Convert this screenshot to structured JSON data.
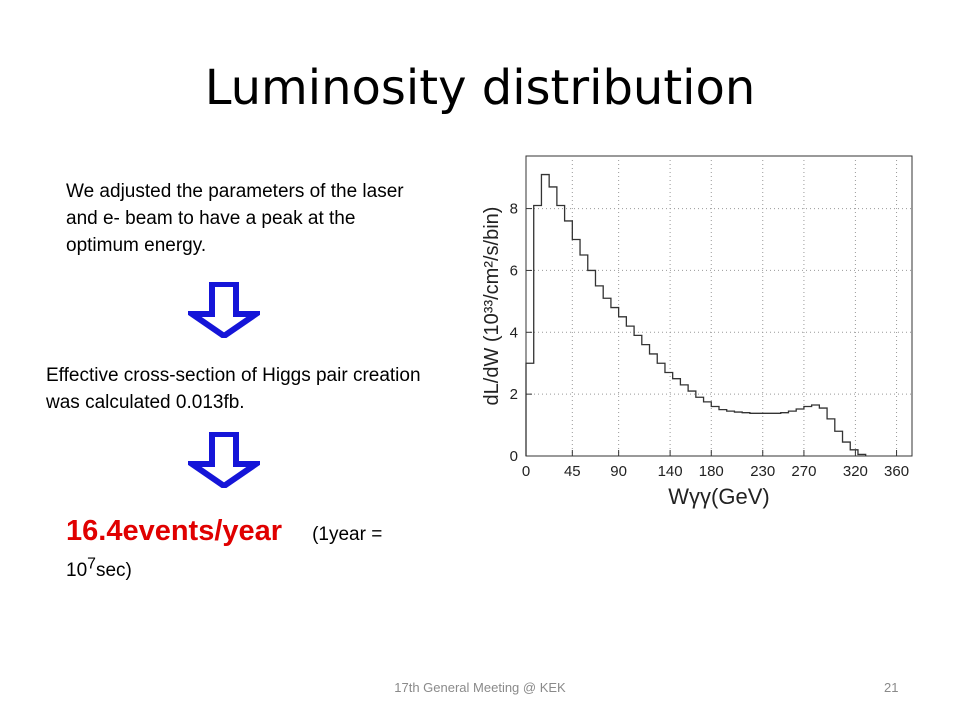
{
  "slide": {
    "title": "Luminosity distribution",
    "paragraph1": "We adjusted the parameters of the laser and e- beam to have a  peak at the optimum energy.",
    "paragraph2": "Effective cross-section of Higgs pair creation was calculated 0.013fb.",
    "result": {
      "events": "16.4events/year",
      "note_prefix": "(1year =",
      "note_base": "10",
      "note_exponent": "7",
      "note_suffix": "sec)"
    },
    "footer": {
      "text": "17th General Meeting @ KEK",
      "page": "21"
    },
    "colors": {
      "arrow": "#1515d8",
      "highlight": "#e00000"
    },
    "arrow_icon": "down-arrow-icon"
  },
  "chart_data": {
    "type": "line",
    "style": "step-histogram",
    "xlabel": "Wγγ(GeV)",
    "ylabel": "dL/dW (10³³/cm²/s/bin)",
    "xlim": [
      0,
      375
    ],
    "ylim": [
      0,
      9.7
    ],
    "xticks": [
      "0",
      "45",
      "90",
      "140",
      "180",
      "230",
      "270",
      "320",
      "360"
    ],
    "xtick_values": [
      0,
      45,
      90,
      140,
      180,
      230,
      270,
      320,
      360
    ],
    "yticks": [
      "0",
      "2",
      "4",
      "6",
      "8"
    ],
    "ytick_values": [
      0,
      2,
      4,
      6,
      8
    ],
    "bin_width": 7.5,
    "values": [
      3.0,
      8.1,
      9.1,
      8.7,
      8.1,
      7.6,
      7.0,
      6.5,
      6.0,
      5.5,
      5.1,
      4.8,
      4.5,
      4.2,
      3.9,
      3.6,
      3.3,
      3.0,
      2.7,
      2.5,
      2.3,
      2.1,
      1.9,
      1.75,
      1.6,
      1.5,
      1.45,
      1.42,
      1.4,
      1.38,
      1.38,
      1.38,
      1.38,
      1.4,
      1.45,
      1.52,
      1.6,
      1.65,
      1.55,
      1.2,
      0.8,
      0.45,
      0.2,
      0.05
    ]
  }
}
